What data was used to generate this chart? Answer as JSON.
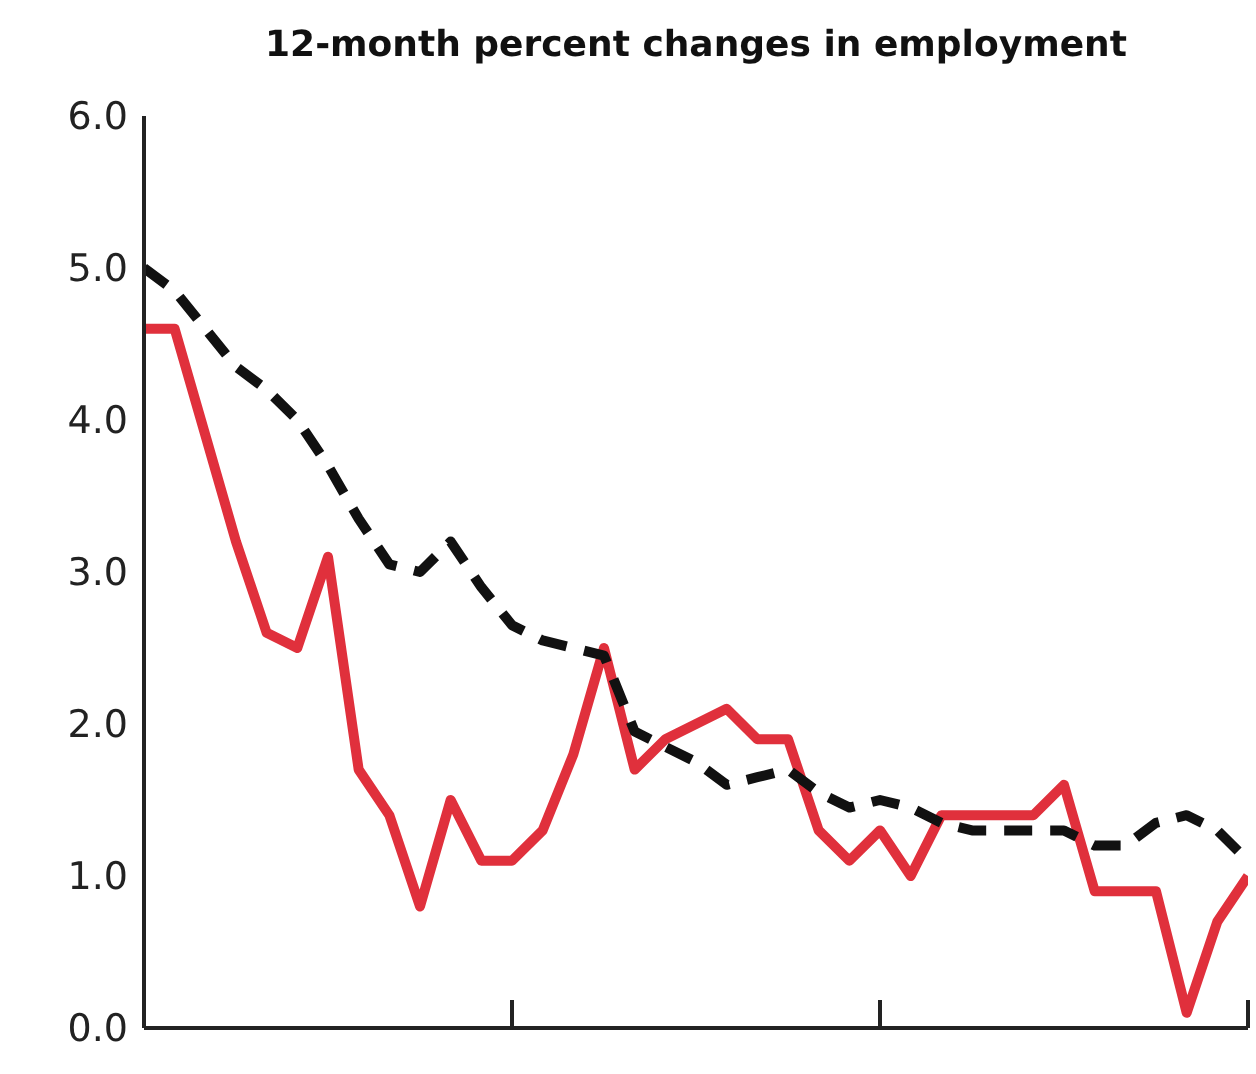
{
  "chart_data": {
    "type": "line",
    "title": "12-month percent changes in employment",
    "categories": [
      null,
      null,
      null,
      null,
      null,
      null,
      null,
      null,
      null,
      null,
      null,
      null,
      null,
      null,
      null,
      null,
      null,
      null,
      null,
      null,
      null,
      null,
      null,
      null,
      null,
      null,
      null,
      null,
      null,
      null,
      null,
      null,
      null,
      null,
      null,
      null,
      null
    ],
    "series": [
      {
        "color": "#e0303c",
        "line_style": "solid",
        "values": [
          4.6,
          4.6,
          3.9,
          3.2,
          2.6,
          2.5,
          3.1,
          1.7,
          1.4,
          0.8,
          1.5,
          1.1,
          1.1,
          1.3,
          1.8,
          2.5,
          1.7,
          1.9,
          2.0,
          2.1,
          1.9,
          1.9,
          1.3,
          1.1,
          1.3,
          1.0,
          1.4,
          1.4,
          1.4,
          1.4,
          1.6,
          0.9,
          0.9,
          0.9,
          0.1,
          0.7,
          1.0
        ]
      },
      {
        "color": "#111111",
        "line_style": "dashed",
        "values": [
          5.0,
          4.85,
          4.6,
          4.35,
          4.2,
          4.0,
          3.7,
          3.35,
          3.05,
          3.0,
          3.2,
          2.9,
          2.65,
          2.55,
          2.5,
          2.45,
          1.95,
          1.85,
          1.75,
          1.6,
          1.65,
          1.7,
          1.55,
          1.45,
          1.5,
          1.45,
          1.35,
          1.3,
          1.3,
          1.3,
          1.3,
          1.2,
          1.2,
          1.35,
          1.4,
          1.3,
          1.1
        ]
      }
    ],
    "ylim": [
      0,
      6
    ],
    "yticks": [
      {
        "value": 0,
        "label": "0.0"
      },
      {
        "value": 1,
        "label": "1.0"
      },
      {
        "value": 2,
        "label": "2.0"
      },
      {
        "value": 3,
        "label": "3.0"
      },
      {
        "value": 4,
        "label": "4.0"
      },
      {
        "value": 5,
        "label": "5.0"
      },
      {
        "value": 6,
        "label": "6.0"
      }
    ],
    "tick_labels": "y",
    "grid": false,
    "legend": false,
    "marker": "none"
  }
}
